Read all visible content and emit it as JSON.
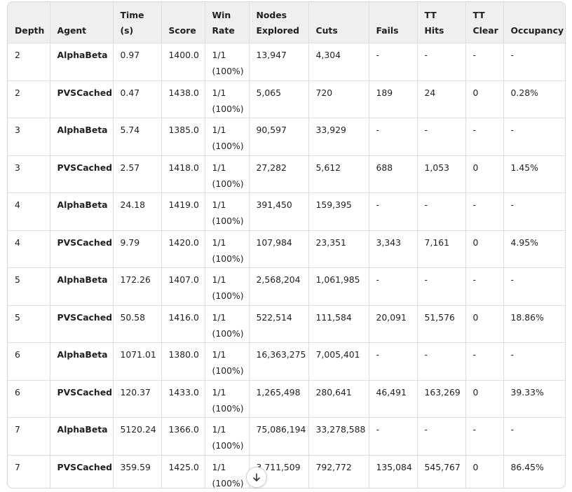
{
  "table": {
    "headers": [
      [
        "Depth"
      ],
      [
        "Agent"
      ],
      [
        "Time",
        "(s)"
      ],
      [
        "Score"
      ],
      [
        "Win",
        "Rate"
      ],
      [
        "Nodes",
        "Explored"
      ],
      [
        "Cuts"
      ],
      [
        "Fails"
      ],
      [
        "TT Hits"
      ],
      [
        "TT",
        "Clear"
      ],
      [
        "Occupancy"
      ]
    ],
    "rows": [
      {
        "depth": "2",
        "agent": "AlphaBeta",
        "time": "0.97",
        "score": "1400.0",
        "win_rate": [
          "1/1",
          "(100%)"
        ],
        "nodes": "13,947",
        "cuts": "4,304",
        "fails": "-",
        "tt_hits": "-",
        "tt_clear": "-",
        "occupancy": "-"
      },
      {
        "depth": "2",
        "agent": "PVSCached",
        "time": "0.47",
        "score": "1438.0",
        "win_rate": [
          "1/1",
          "(100%)"
        ],
        "nodes": "5,065",
        "cuts": "720",
        "fails": "189",
        "tt_hits": "24",
        "tt_clear": "0",
        "occupancy": "0.28%"
      },
      {
        "depth": "3",
        "agent": "AlphaBeta",
        "time": "5.74",
        "score": "1385.0",
        "win_rate": [
          "1/1",
          "(100%)"
        ],
        "nodes": "90,597",
        "cuts": "33,929",
        "fails": "-",
        "tt_hits": "-",
        "tt_clear": "-",
        "occupancy": "-"
      },
      {
        "depth": "3",
        "agent": "PVSCached",
        "time": "2.57",
        "score": "1418.0",
        "win_rate": [
          "1/1",
          "(100%)"
        ],
        "nodes": "27,282",
        "cuts": "5,612",
        "fails": "688",
        "tt_hits": "1,053",
        "tt_clear": "0",
        "occupancy": "1.45%"
      },
      {
        "depth": "4",
        "agent": "AlphaBeta",
        "time": "24.18",
        "score": "1419.0",
        "win_rate": [
          "1/1",
          "(100%)"
        ],
        "nodes": "391,450",
        "cuts": "159,395",
        "fails": "-",
        "tt_hits": "-",
        "tt_clear": "-",
        "occupancy": "-"
      },
      {
        "depth": "4",
        "agent": "PVSCached",
        "time": "9.79",
        "score": "1420.0",
        "win_rate": [
          "1/1",
          "(100%)"
        ],
        "nodes": "107,984",
        "cuts": "23,351",
        "fails": "3,343",
        "tt_hits": "7,161",
        "tt_clear": "0",
        "occupancy": "4.95%"
      },
      {
        "depth": "5",
        "agent": "AlphaBeta",
        "time": "172.26",
        "score": "1407.0",
        "win_rate": [
          "1/1",
          "(100%)"
        ],
        "nodes": "2,568,204",
        "cuts": "1,061,985",
        "fails": "-",
        "tt_hits": "-",
        "tt_clear": "-",
        "occupancy": "-"
      },
      {
        "depth": "5",
        "agent": "PVSCached",
        "time": "50.58",
        "score": "1416.0",
        "win_rate": [
          "1/1",
          "(100%)"
        ],
        "nodes": "522,514",
        "cuts": "111,584",
        "fails": "20,091",
        "tt_hits": "51,576",
        "tt_clear": "0",
        "occupancy": "18.86%"
      },
      {
        "depth": "6",
        "agent": "AlphaBeta",
        "time": "1071.01",
        "score": "1380.0",
        "win_rate": [
          "1/1",
          "(100%)"
        ],
        "nodes": "16,363,275",
        "cuts": "7,005,401",
        "fails": "-",
        "tt_hits": "-",
        "tt_clear": "-",
        "occupancy": "-"
      },
      {
        "depth": "6",
        "agent": "PVSCached",
        "time": "120.37",
        "score": "1433.0",
        "win_rate": [
          "1/1",
          "(100%)"
        ],
        "nodes": "1,265,498",
        "cuts": "280,641",
        "fails": "46,491",
        "tt_hits": "163,269",
        "tt_clear": "0",
        "occupancy": "39.33%"
      },
      {
        "depth": "7",
        "agent": "AlphaBeta",
        "time": "5120.24",
        "score": "1366.0",
        "win_rate": [
          "1/1",
          "(100%)"
        ],
        "nodes": "75,086,194",
        "cuts": "33,278,588",
        "fails": "-",
        "tt_hits": "-",
        "tt_clear": "-",
        "occupancy": "-"
      },
      {
        "depth": "7",
        "agent": "PVSCached",
        "time": "359.59",
        "score": "1425.0",
        "win_rate": [
          "1/1",
          "(100%)"
        ],
        "nodes": "3,711,509",
        "cuts": "792,772",
        "fails": "135,084",
        "tt_hits": "545,767",
        "tt_clear": "0",
        "occupancy": "86.45%"
      }
    ]
  },
  "scroll_button": {
    "icon": "arrow-down-icon"
  }
}
